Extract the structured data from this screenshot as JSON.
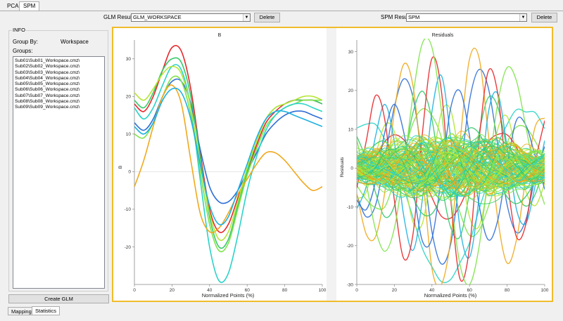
{
  "tabs": [
    "PCA",
    "SPM"
  ],
  "glm": {
    "label": "GLM Results:",
    "value": "GLM_WORKSPACE",
    "delete_label": "Delete"
  },
  "spm": {
    "label": "SPM Results:",
    "value": "SPM",
    "delete_label": "Delete"
  },
  "info": {
    "title": "INFO",
    "group_by_label": "Group By:",
    "group_by_value": "Workspace",
    "groups_label": "Groups:",
    "groups": [
      "Sub01\\Sub01_Workspace.cmz\\",
      "Sub02\\Sub02_Workspace.cmz\\",
      "Sub03\\Sub03_Workspace.cmz\\",
      "Sub04\\Sub04_Workspace.cmz\\",
      "Sub05\\Sub05_Workspace.cmz\\",
      "Sub06\\Sub06_Workspace.cmz\\",
      "Sub07\\Sub07_Workspace.cmz\\",
      "Sub08\\Sub08_Workspace.cmz\\",
      "Sub09\\Sub09_Workspace.cmz\\"
    ],
    "create_glm_label": "Create GLM"
  },
  "bottom_tabs": [
    "Mapping",
    "Statistics"
  ],
  "colors": {
    "accent_border": "#f0bc2a",
    "series_palette": [
      "#e8262a",
      "#2f6fd6",
      "#37c96b",
      "#7fe34a",
      "#2ad3c8",
      "#f0a81c",
      "#b5e636",
      "#1fb0e0"
    ]
  },
  "chart_data": [
    {
      "type": "line",
      "title": "B",
      "xlabel": "Normalized Points (%)",
      "ylabel": "B",
      "xlim": [
        0,
        100
      ],
      "ylim": [
        -30,
        35
      ],
      "xticks": [
        0,
        20,
        40,
        60,
        80,
        100
      ],
      "yticks": [
        -20,
        -10,
        0,
        10,
        20,
        30
      ],
      "x": [
        0,
        5,
        10,
        15,
        20,
        25,
        30,
        35,
        40,
        45,
        50,
        55,
        60,
        65,
        70,
        75,
        80,
        85,
        90,
        95,
        100
      ],
      "series": [
        {
          "color": "#e8262a",
          "values": [
            18,
            16,
            20,
            27,
            33,
            32,
            22,
            5,
            -10,
            -16,
            -14,
            -7,
            0,
            7,
            13,
            16,
            18,
            19,
            19,
            19,
            18
          ]
        },
        {
          "color": "#2f6fd6",
          "values": [
            13,
            11,
            14,
            20,
            24,
            24,
            18,
            6,
            -4,
            -8,
            -8,
            -5,
            0,
            5,
            10,
            13,
            15,
            16,
            16,
            15,
            14
          ]
        },
        {
          "color": "#37c96b",
          "values": [
            19,
            17,
            21,
            27,
            30,
            29,
            20,
            4,
            -12,
            -20,
            -18,
            -9,
            0,
            8,
            14,
            17,
            18,
            19,
            19,
            19,
            18
          ]
        },
        {
          "color": "#7fe34a",
          "values": [
            10,
            9,
            13,
            20,
            25,
            24,
            15,
            0,
            -14,
            -21,
            -19,
            -10,
            -1,
            6,
            12,
            15,
            17,
            18,
            19,
            19,
            19
          ]
        },
        {
          "color": "#2ad3c8",
          "values": [
            17,
            14,
            17,
            23,
            28,
            27,
            17,
            -2,
            -20,
            -29,
            -27,
            -17,
            -5,
            4,
            11,
            15,
            17,
            18,
            18,
            17,
            16
          ]
        },
        {
          "color": "#f0a81c",
          "values": [
            -4,
            3,
            12,
            20,
            23,
            18,
            3,
            -11,
            -16,
            -15,
            -11,
            -6,
            -2,
            2,
            5,
            5,
            3,
            0,
            -3,
            -5,
            -4
          ]
        },
        {
          "color": "#b5e636",
          "values": [
            21,
            19,
            22,
            26,
            28,
            26,
            17,
            2,
            -11,
            -18,
            -16,
            -8,
            1,
            8,
            14,
            17,
            18,
            19,
            20,
            20,
            19
          ]
        },
        {
          "color": "#1fb0e0",
          "values": [
            12,
            10,
            13,
            19,
            22,
            21,
            14,
            2,
            -9,
            -14,
            -12,
            -5,
            2,
            9,
            14,
            16,
            16,
            15,
            14,
            13,
            12
          ]
        }
      ]
    },
    {
      "type": "line",
      "title": "Residuals",
      "xlabel": "Normalized Points (%)",
      "ylabel": "Residuals",
      "xlim": [
        0,
        100
      ],
      "ylim": [
        -30,
        33
      ],
      "xticks": [
        0,
        20,
        40,
        60,
        80,
        100
      ],
      "yticks": [
        -30,
        -20,
        -10,
        0,
        10,
        20,
        30
      ]
    }
  ]
}
